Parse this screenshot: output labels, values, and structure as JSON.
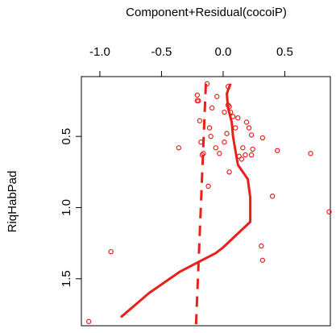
{
  "chart_data": {
    "type": "scatter",
    "title": "",
    "xlabel": "Component+Residual(cocoiP)",
    "ylabel": "RiqHabPad",
    "xlim": [
      -1.15,
      0.87
    ],
    "ylim": [
      0.08,
      1.83
    ],
    "x_axis_position": "top",
    "y_axis_reversed": true,
    "y_tick_labels_rotated": true,
    "x_ticks": [
      -1.0,
      -0.5,
      0.0,
      0.5
    ],
    "x_tick_labels": [
      "-1.0",
      "-0.5",
      "0.0",
      "0.5"
    ],
    "y_ticks": [
      0.5,
      1.0,
      1.5
    ],
    "y_tick_labels": [
      "0.5",
      "1.0",
      "1.5"
    ],
    "grid": false,
    "point_color": "#e8201c",
    "points": [
      {
        "x": -0.13,
        "y": 0.13
      },
      {
        "x": 0.04,
        "y": 0.15
      },
      {
        "x": -0.21,
        "y": 0.21
      },
      {
        "x": -0.21,
        "y": 0.25
      },
      {
        "x": -0.2,
        "y": 0.25
      },
      {
        "x": -0.05,
        "y": 0.22
      },
      {
        "x": -0.09,
        "y": 0.3
      },
      {
        "x": 0.04,
        "y": 0.28
      },
      {
        "x": 0.05,
        "y": 0.29
      },
      {
        "x": 0.08,
        "y": 0.36
      },
      {
        "x": 0.01,
        "y": 0.33
      },
      {
        "x": 0.06,
        "y": 0.33
      },
      {
        "x": 0.12,
        "y": 0.37
      },
      {
        "x": 0.19,
        "y": 0.4
      },
      {
        "x": -0.19,
        "y": 0.39
      },
      {
        "x": 0.1,
        "y": 0.44
      },
      {
        "x": -0.11,
        "y": 0.44
      },
      {
        "x": 0.21,
        "y": 0.44
      },
      {
        "x": 0.03,
        "y": 0.48
      },
      {
        "x": -0.1,
        "y": 0.5
      },
      {
        "x": 0.23,
        "y": 0.49
      },
      {
        "x": 0.01,
        "y": 0.54
      },
      {
        "x": -0.18,
        "y": 0.54
      },
      {
        "x": 0.32,
        "y": 0.51
      },
      {
        "x": -0.06,
        "y": 0.58
      },
      {
        "x": -0.36,
        "y": 0.58
      },
      {
        "x": 0.16,
        "y": 0.58
      },
      {
        "x": 0.24,
        "y": 0.59
      },
      {
        "x": -0.03,
        "y": 0.62
      },
      {
        "x": 0.44,
        "y": 0.6
      },
      {
        "x": 0.71,
        "y": 0.62
      },
      {
        "x": -0.16,
        "y": 0.62
      },
      {
        "x": -0.17,
        "y": 0.63
      },
      {
        "x": 0.18,
        "y": 0.63
      },
      {
        "x": 0.23,
        "y": 0.63
      },
      {
        "x": 0.13,
        "y": 0.64
      },
      {
        "x": 0.15,
        "y": 0.66
      },
      {
        "x": 0.05,
        "y": 0.75
      },
      {
        "x": -0.12,
        "y": 0.85
      },
      {
        "x": 0.4,
        "y": 0.92
      },
      {
        "x": 0.86,
        "y": 1.03
      },
      {
        "x": 0.31,
        "y": 1.27
      },
      {
        "x": -0.91,
        "y": 1.31
      },
      {
        "x": 0.32,
        "y": 1.37
      },
      {
        "x": -1.09,
        "y": 1.8
      }
    ],
    "series": [
      {
        "style": "solid",
        "color": "#e8201c",
        "x": [
          0.06,
          0.03,
          0.04,
          0.07,
          0.08,
          0.1,
          0.12,
          0.2,
          0.22,
          0.22,
          0.0,
          -0.06,
          -0.35,
          -0.6,
          -0.83
        ],
        "y": [
          0.13,
          0.2,
          0.3,
          0.4,
          0.5,
          0.6,
          0.7,
          0.8,
          0.93,
          1.1,
          1.28,
          1.32,
          1.45,
          1.6,
          1.77
        ]
      },
      {
        "style": "dashed",
        "color": "#e8201c",
        "x": [
          -0.14,
          -0.22
        ],
        "y": [
          0.13,
          1.82
        ]
      }
    ]
  }
}
